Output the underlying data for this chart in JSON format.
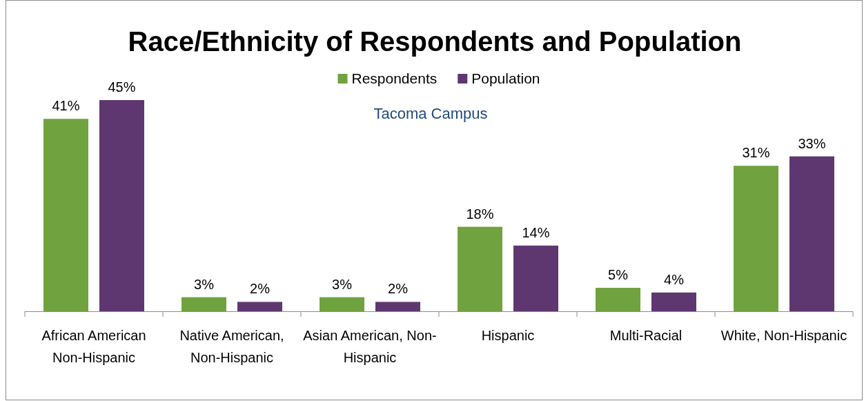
{
  "chart_data": {
    "type": "bar",
    "title": "Race/Ethnicity of Respondents and Population",
    "subtitle": "Tacoma Campus",
    "categories": [
      "African American Non-Hispanic",
      "Native American, Non-Hispanic",
      "Asian American, Non-Hispanic",
      "Hispanic",
      "Multi-Racial",
      "White, Non-Hispanic"
    ],
    "series": [
      {
        "name": "Respondents",
        "color": "#70a33f",
        "values": [
          41,
          3,
          3,
          18,
          5,
          31
        ],
        "value_labels": [
          "41%",
          "3%",
          "3%",
          "18%",
          "5%",
          "31%"
        ]
      },
      {
        "name": "Population",
        "color": "#5f3770",
        "values": [
          45,
          2,
          2,
          14,
          4,
          33
        ],
        "value_labels": [
          "45%",
          "2%",
          "2%",
          "14%",
          "4%",
          "33%"
        ]
      }
    ],
    "legend": "top"
  }
}
